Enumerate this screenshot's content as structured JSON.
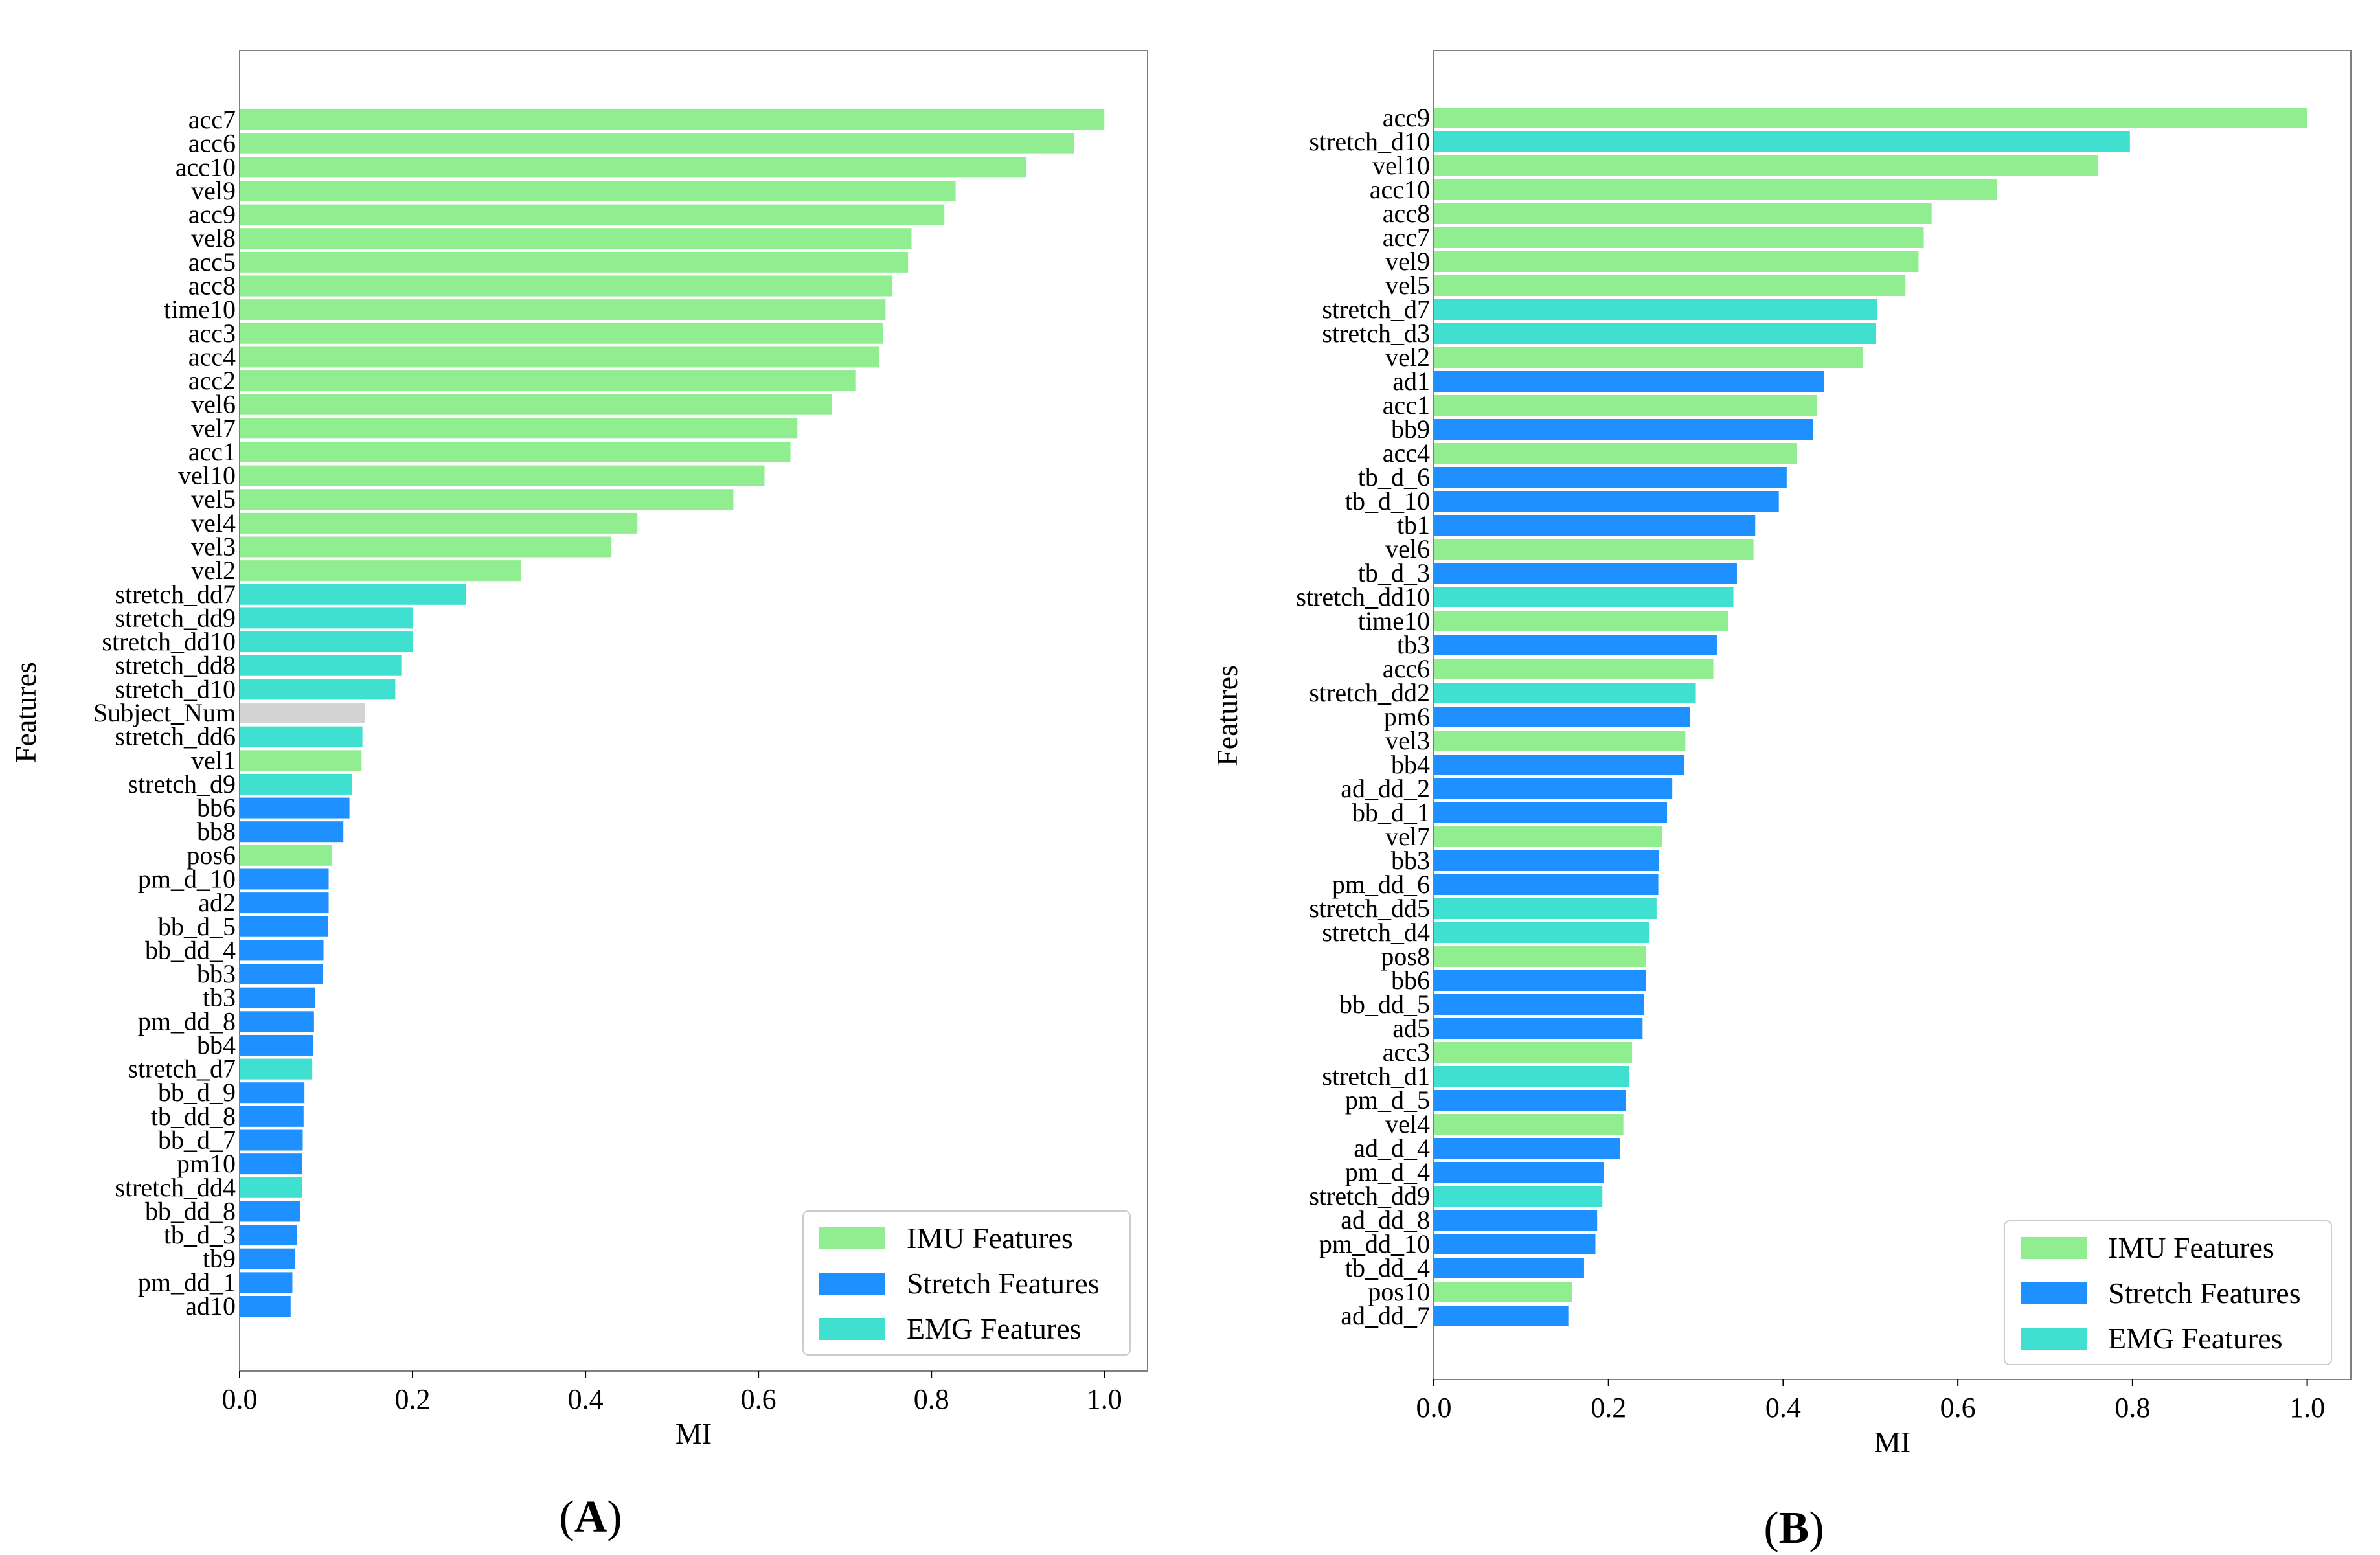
{
  "colors": {
    "IMU": "#90EE90",
    "Stretch": "#1E90FF",
    "EMG": "#40E0D0",
    "Other": "#D3D3D3",
    "frame": "#7f7f7f"
  },
  "legend": [
    {
      "key": "IMU",
      "label": "IMU Features"
    },
    {
      "key": "Stretch",
      "label": "Stretch Features"
    },
    {
      "key": "EMG",
      "label": "EMG Features"
    }
  ],
  "chart_data": [
    {
      "id": "A",
      "panel_label": "A",
      "type": "bar",
      "orientation": "horizontal",
      "xlabel": "MI",
      "ylabel": "Features",
      "xlim": [
        0,
        1.05
      ],
      "xticks": [
        "0.0",
        "0.2",
        "0.4",
        "0.6",
        "0.8",
        "1.0"
      ],
      "legend_position": "bottom-right",
      "bars": [
        {
          "label": "acc7",
          "value": 1.0,
          "group": "IMU"
        },
        {
          "label": "acc6",
          "value": 0.965,
          "group": "IMU"
        },
        {
          "label": "acc10",
          "value": 0.91,
          "group": "IMU"
        },
        {
          "label": "vel9",
          "value": 0.828,
          "group": "IMU"
        },
        {
          "label": "acc9",
          "value": 0.815,
          "group": "IMU"
        },
        {
          "label": "vel8",
          "value": 0.777,
          "group": "IMU"
        },
        {
          "label": "acc5",
          "value": 0.773,
          "group": "IMU"
        },
        {
          "label": "acc8",
          "value": 0.755,
          "group": "IMU"
        },
        {
          "label": "time10",
          "value": 0.747,
          "group": "IMU"
        },
        {
          "label": "acc3",
          "value": 0.744,
          "group": "IMU"
        },
        {
          "label": "acc4",
          "value": 0.74,
          "group": "IMU"
        },
        {
          "label": "acc2",
          "value": 0.712,
          "group": "IMU"
        },
        {
          "label": "vel6",
          "value": 0.685,
          "group": "IMU"
        },
        {
          "label": "vel7",
          "value": 0.645,
          "group": "IMU"
        },
        {
          "label": "acc1",
          "value": 0.637,
          "group": "IMU"
        },
        {
          "label": "vel10",
          "value": 0.607,
          "group": "IMU"
        },
        {
          "label": "vel5",
          "value": 0.571,
          "group": "IMU"
        },
        {
          "label": "vel4",
          "value": 0.46,
          "group": "IMU"
        },
        {
          "label": "vel3",
          "value": 0.43,
          "group": "IMU"
        },
        {
          "label": "vel2",
          "value": 0.325,
          "group": "IMU"
        },
        {
          "label": "stretch_dd7",
          "value": 0.262,
          "group": "EMG"
        },
        {
          "label": "stretch_dd9",
          "value": 0.2,
          "group": "EMG"
        },
        {
          "label": "stretch_dd10",
          "value": 0.2,
          "group": "EMG"
        },
        {
          "label": "stretch_dd8",
          "value": 0.187,
          "group": "EMG"
        },
        {
          "label": "stretch_d10",
          "value": 0.18,
          "group": "EMG"
        },
        {
          "label": "Subject_Num",
          "value": 0.145,
          "group": "Other"
        },
        {
          "label": "stretch_dd6",
          "value": 0.142,
          "group": "EMG"
        },
        {
          "label": "vel1",
          "value": 0.141,
          "group": "IMU"
        },
        {
          "label": "stretch_d9",
          "value": 0.13,
          "group": "EMG"
        },
        {
          "label": "bb6",
          "value": 0.127,
          "group": "Stretch"
        },
        {
          "label": "bb8",
          "value": 0.12,
          "group": "Stretch"
        },
        {
          "label": "pos6",
          "value": 0.107,
          "group": "IMU"
        },
        {
          "label": "pm_d_10",
          "value": 0.103,
          "group": "Stretch"
        },
        {
          "label": "ad2",
          "value": 0.103,
          "group": "Stretch"
        },
        {
          "label": "bb_d_5",
          "value": 0.102,
          "group": "Stretch"
        },
        {
          "label": "bb_dd_4",
          "value": 0.097,
          "group": "Stretch"
        },
        {
          "label": "bb3",
          "value": 0.096,
          "group": "Stretch"
        },
        {
          "label": "tb3",
          "value": 0.087,
          "group": "Stretch"
        },
        {
          "label": "pm_dd_8",
          "value": 0.086,
          "group": "Stretch"
        },
        {
          "label": "bb4",
          "value": 0.085,
          "group": "Stretch"
        },
        {
          "label": "stretch_d7",
          "value": 0.084,
          "group": "EMG"
        },
        {
          "label": "bb_d_9",
          "value": 0.075,
          "group": "Stretch"
        },
        {
          "label": "tb_dd_8",
          "value": 0.074,
          "group": "Stretch"
        },
        {
          "label": "bb_d_7",
          "value": 0.073,
          "group": "Stretch"
        },
        {
          "label": "pm10",
          "value": 0.072,
          "group": "Stretch"
        },
        {
          "label": "stretch_dd4",
          "value": 0.072,
          "group": "EMG"
        },
        {
          "label": "bb_dd_8",
          "value": 0.07,
          "group": "Stretch"
        },
        {
          "label": "tb_d_3",
          "value": 0.066,
          "group": "Stretch"
        },
        {
          "label": "tb9",
          "value": 0.064,
          "group": "Stretch"
        },
        {
          "label": "pm_dd_1",
          "value": 0.061,
          "group": "Stretch"
        },
        {
          "label": "ad10",
          "value": 0.059,
          "group": "Stretch"
        }
      ]
    },
    {
      "id": "B",
      "panel_label": "B",
      "type": "bar",
      "orientation": "horizontal",
      "xlabel": "MI",
      "ylabel": "Features",
      "xlim": [
        0,
        1.05
      ],
      "xticks": [
        "0.0",
        "0.2",
        "0.4",
        "0.6",
        "0.8",
        "1.0"
      ],
      "legend_position": "bottom-right",
      "bars": [
        {
          "label": "acc9",
          "value": 1.0,
          "group": "IMU"
        },
        {
          "label": "stretch_d10",
          "value": 0.797,
          "group": "EMG"
        },
        {
          "label": "vel10",
          "value": 0.76,
          "group": "IMU"
        },
        {
          "label": "acc10",
          "value": 0.645,
          "group": "IMU"
        },
        {
          "label": "acc8",
          "value": 0.57,
          "group": "IMU"
        },
        {
          "label": "acc7",
          "value": 0.561,
          "group": "IMU"
        },
        {
          "label": "vel9",
          "value": 0.555,
          "group": "IMU"
        },
        {
          "label": "vel5",
          "value": 0.54,
          "group": "IMU"
        },
        {
          "label": "stretch_d7",
          "value": 0.508,
          "group": "EMG"
        },
        {
          "label": "stretch_d3",
          "value": 0.506,
          "group": "EMG"
        },
        {
          "label": "vel2",
          "value": 0.491,
          "group": "IMU"
        },
        {
          "label": "ad1",
          "value": 0.447,
          "group": "Stretch"
        },
        {
          "label": "acc1",
          "value": 0.439,
          "group": "IMU"
        },
        {
          "label": "bb9",
          "value": 0.434,
          "group": "Stretch"
        },
        {
          "label": "acc4",
          "value": 0.416,
          "group": "IMU"
        },
        {
          "label": "tb_d_6",
          "value": 0.404,
          "group": "Stretch"
        },
        {
          "label": "tb_d_10",
          "value": 0.395,
          "group": "Stretch"
        },
        {
          "label": "tb1",
          "value": 0.368,
          "group": "Stretch"
        },
        {
          "label": "vel6",
          "value": 0.366,
          "group": "IMU"
        },
        {
          "label": "tb_d_3",
          "value": 0.347,
          "group": "Stretch"
        },
        {
          "label": "stretch_dd10",
          "value": 0.343,
          "group": "EMG"
        },
        {
          "label": "time10",
          "value": 0.337,
          "group": "IMU"
        },
        {
          "label": "tb3",
          "value": 0.324,
          "group": "Stretch"
        },
        {
          "label": "acc6",
          "value": 0.32,
          "group": "IMU"
        },
        {
          "label": "stretch_dd2",
          "value": 0.3,
          "group": "EMG"
        },
        {
          "label": "pm6",
          "value": 0.293,
          "group": "Stretch"
        },
        {
          "label": "vel3",
          "value": 0.288,
          "group": "IMU"
        },
        {
          "label": "bb4",
          "value": 0.287,
          "group": "Stretch"
        },
        {
          "label": "ad_dd_2",
          "value": 0.273,
          "group": "Stretch"
        },
        {
          "label": "bb_d_1",
          "value": 0.267,
          "group": "Stretch"
        },
        {
          "label": "vel7",
          "value": 0.261,
          "group": "IMU"
        },
        {
          "label": "bb3",
          "value": 0.258,
          "group": "Stretch"
        },
        {
          "label": "pm_dd_6",
          "value": 0.257,
          "group": "Stretch"
        },
        {
          "label": "stretch_dd5",
          "value": 0.255,
          "group": "EMG"
        },
        {
          "label": "stretch_d4",
          "value": 0.247,
          "group": "EMG"
        },
        {
          "label": "pos8",
          "value": 0.243,
          "group": "IMU"
        },
        {
          "label": "bb6",
          "value": 0.243,
          "group": "Stretch"
        },
        {
          "label": "bb_dd_5",
          "value": 0.241,
          "group": "Stretch"
        },
        {
          "label": "ad5",
          "value": 0.239,
          "group": "Stretch"
        },
        {
          "label": "acc3",
          "value": 0.227,
          "group": "IMU"
        },
        {
          "label": "stretch_d1",
          "value": 0.224,
          "group": "EMG"
        },
        {
          "label": "pm_d_5",
          "value": 0.22,
          "group": "Stretch"
        },
        {
          "label": "vel4",
          "value": 0.217,
          "group": "IMU"
        },
        {
          "label": "ad_d_4",
          "value": 0.213,
          "group": "Stretch"
        },
        {
          "label": "pm_d_4",
          "value": 0.195,
          "group": "Stretch"
        },
        {
          "label": "stretch_dd9",
          "value": 0.193,
          "group": "EMG"
        },
        {
          "label": "ad_dd_8",
          "value": 0.187,
          "group": "Stretch"
        },
        {
          "label": "pm_dd_10",
          "value": 0.185,
          "group": "Stretch"
        },
        {
          "label": "tb_dd_4",
          "value": 0.172,
          "group": "Stretch"
        },
        {
          "label": "pos10",
          "value": 0.158,
          "group": "IMU"
        },
        {
          "label": "ad_dd_7",
          "value": 0.154,
          "group": "Stretch"
        }
      ]
    }
  ]
}
